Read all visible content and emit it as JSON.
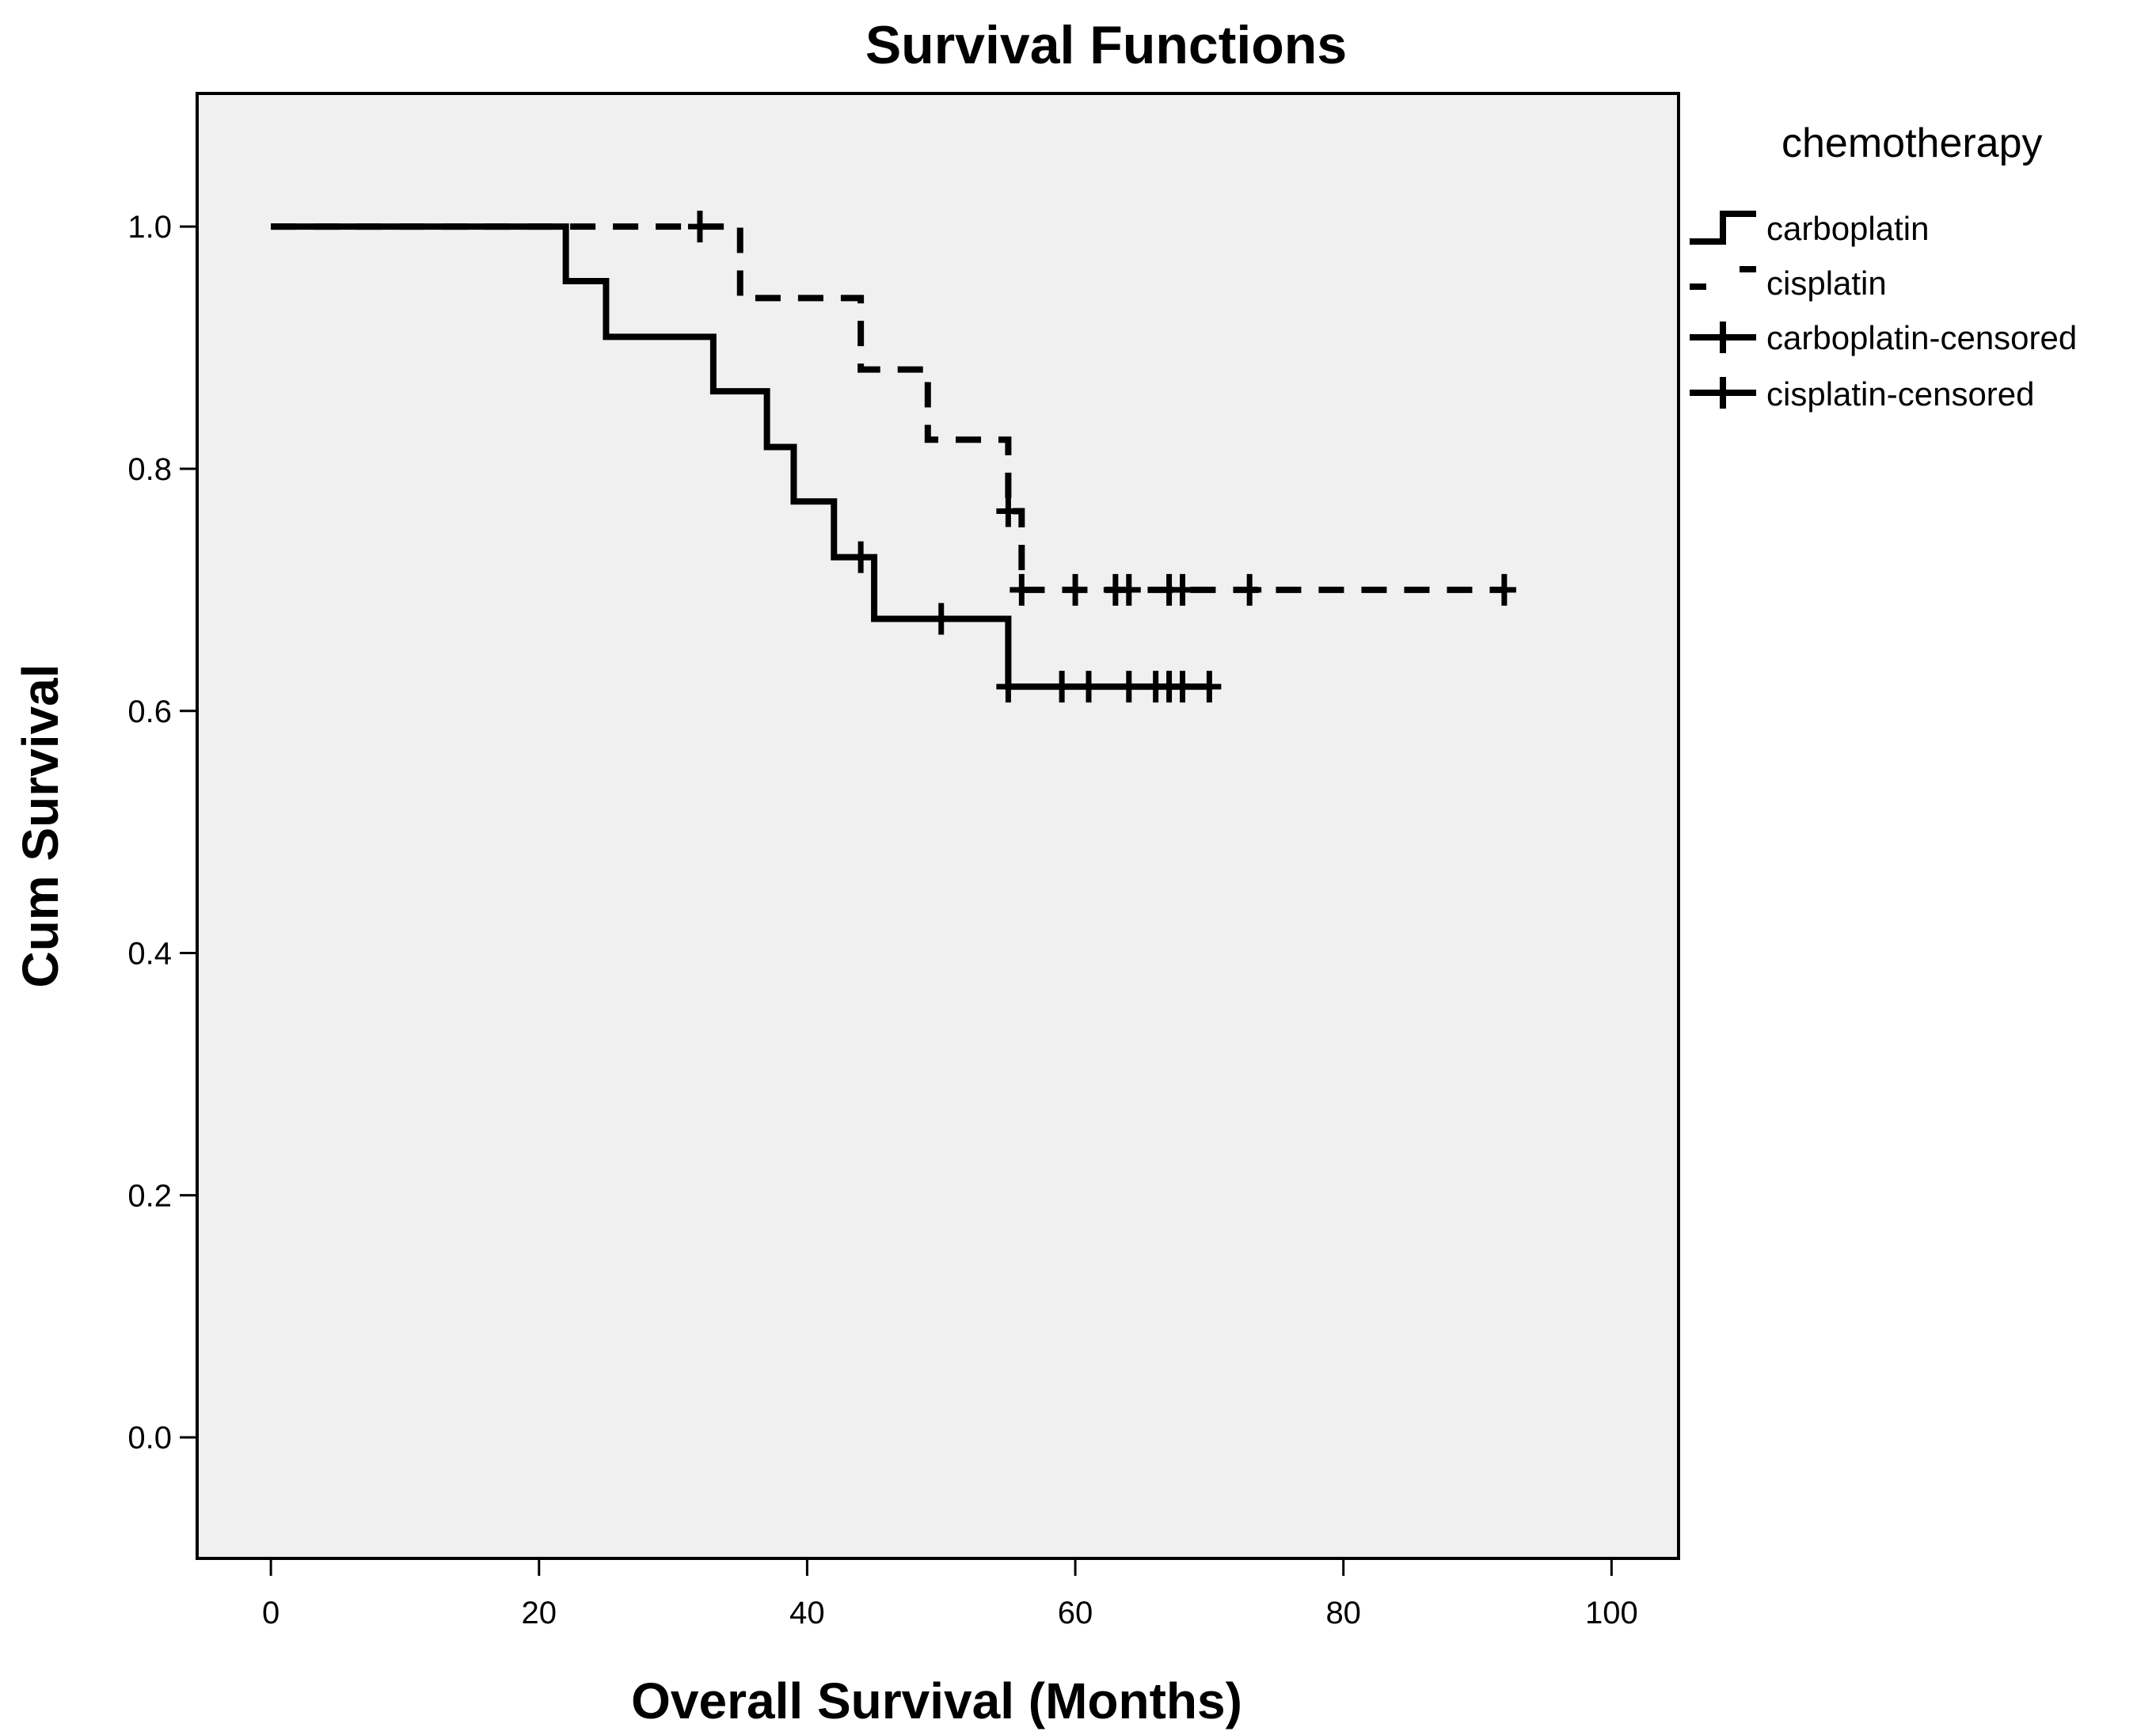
{
  "chart_data": {
    "type": "line",
    "subtype": "kaplan-meier-step",
    "title": "Survival Functions",
    "xlabel": "Overall Survival (Months)",
    "ylabel": "Cum Survival",
    "xlim": [
      -5.5,
      105
    ],
    "ylim": [
      -0.1,
      1.11
    ],
    "xticks": [
      0,
      20,
      40,
      60,
      80,
      100
    ],
    "xtick_labels": [
      "0",
      "20",
      "40",
      "60",
      "80",
      "100"
    ],
    "yticks": [
      0.0,
      0.2,
      0.4,
      0.6,
      0.8,
      1.0
    ],
    "ytick_labels": [
      "0.0",
      "0.2",
      "0.4",
      "0.6",
      "0.8",
      "1.0"
    ],
    "grid": false,
    "plot_background": "#f0f0f0",
    "line_color": "#000000",
    "legend": {
      "title": "chemotherapy",
      "placement": "right",
      "entries": [
        "carboplatin",
        "cisplatin",
        "carboplatin-censored",
        "cisplatin-censored"
      ]
    },
    "series": [
      {
        "name": "carboplatin",
        "style": "solid",
        "steps": [
          {
            "x": 0,
            "y": 1.0
          },
          {
            "x": 22,
            "y": 0.955
          },
          {
            "x": 25,
            "y": 0.909
          },
          {
            "x": 33,
            "y": 0.864
          },
          {
            "x": 37,
            "y": 0.818
          },
          {
            "x": 39,
            "y": 0.773
          },
          {
            "x": 42,
            "y": 0.727
          },
          {
            "x": 45,
            "y": 0.676
          },
          {
            "x": 55,
            "y": 0.62
          }
        ],
        "end_x": 70,
        "censored": [
          {
            "x": 44,
            "y": 0.727
          },
          {
            "x": 50,
            "y": 0.676
          },
          {
            "x": 55,
            "y": 0.62
          },
          {
            "x": 59,
            "y": 0.62
          },
          {
            "x": 61,
            "y": 0.62
          },
          {
            "x": 64,
            "y": 0.62
          },
          {
            "x": 66,
            "y": 0.62
          },
          {
            "x": 67,
            "y": 0.62
          },
          {
            "x": 68,
            "y": 0.62
          },
          {
            "x": 70,
            "y": 0.62
          }
        ]
      },
      {
        "name": "cisplatin",
        "style": "dashed",
        "steps": [
          {
            "x": 0,
            "y": 1.0
          },
          {
            "x": 35,
            "y": 0.941
          },
          {
            "x": 44,
            "y": 0.882
          },
          {
            "x": 49,
            "y": 0.824
          },
          {
            "x": 55,
            "y": 0.765
          },
          {
            "x": 56,
            "y": 0.7
          }
        ],
        "end_x": 92,
        "censored": [
          {
            "x": 32,
            "y": 1.0
          },
          {
            "x": 55,
            "y": 0.765
          },
          {
            "x": 56,
            "y": 0.7
          },
          {
            "x": 60,
            "y": 0.7
          },
          {
            "x": 63,
            "y": 0.7
          },
          {
            "x": 64,
            "y": 0.7
          },
          {
            "x": 67,
            "y": 0.7
          },
          {
            "x": 68,
            "y": 0.7
          },
          {
            "x": 73,
            "y": 0.7
          },
          {
            "x": 92,
            "y": 0.7
          }
        ]
      }
    ]
  }
}
